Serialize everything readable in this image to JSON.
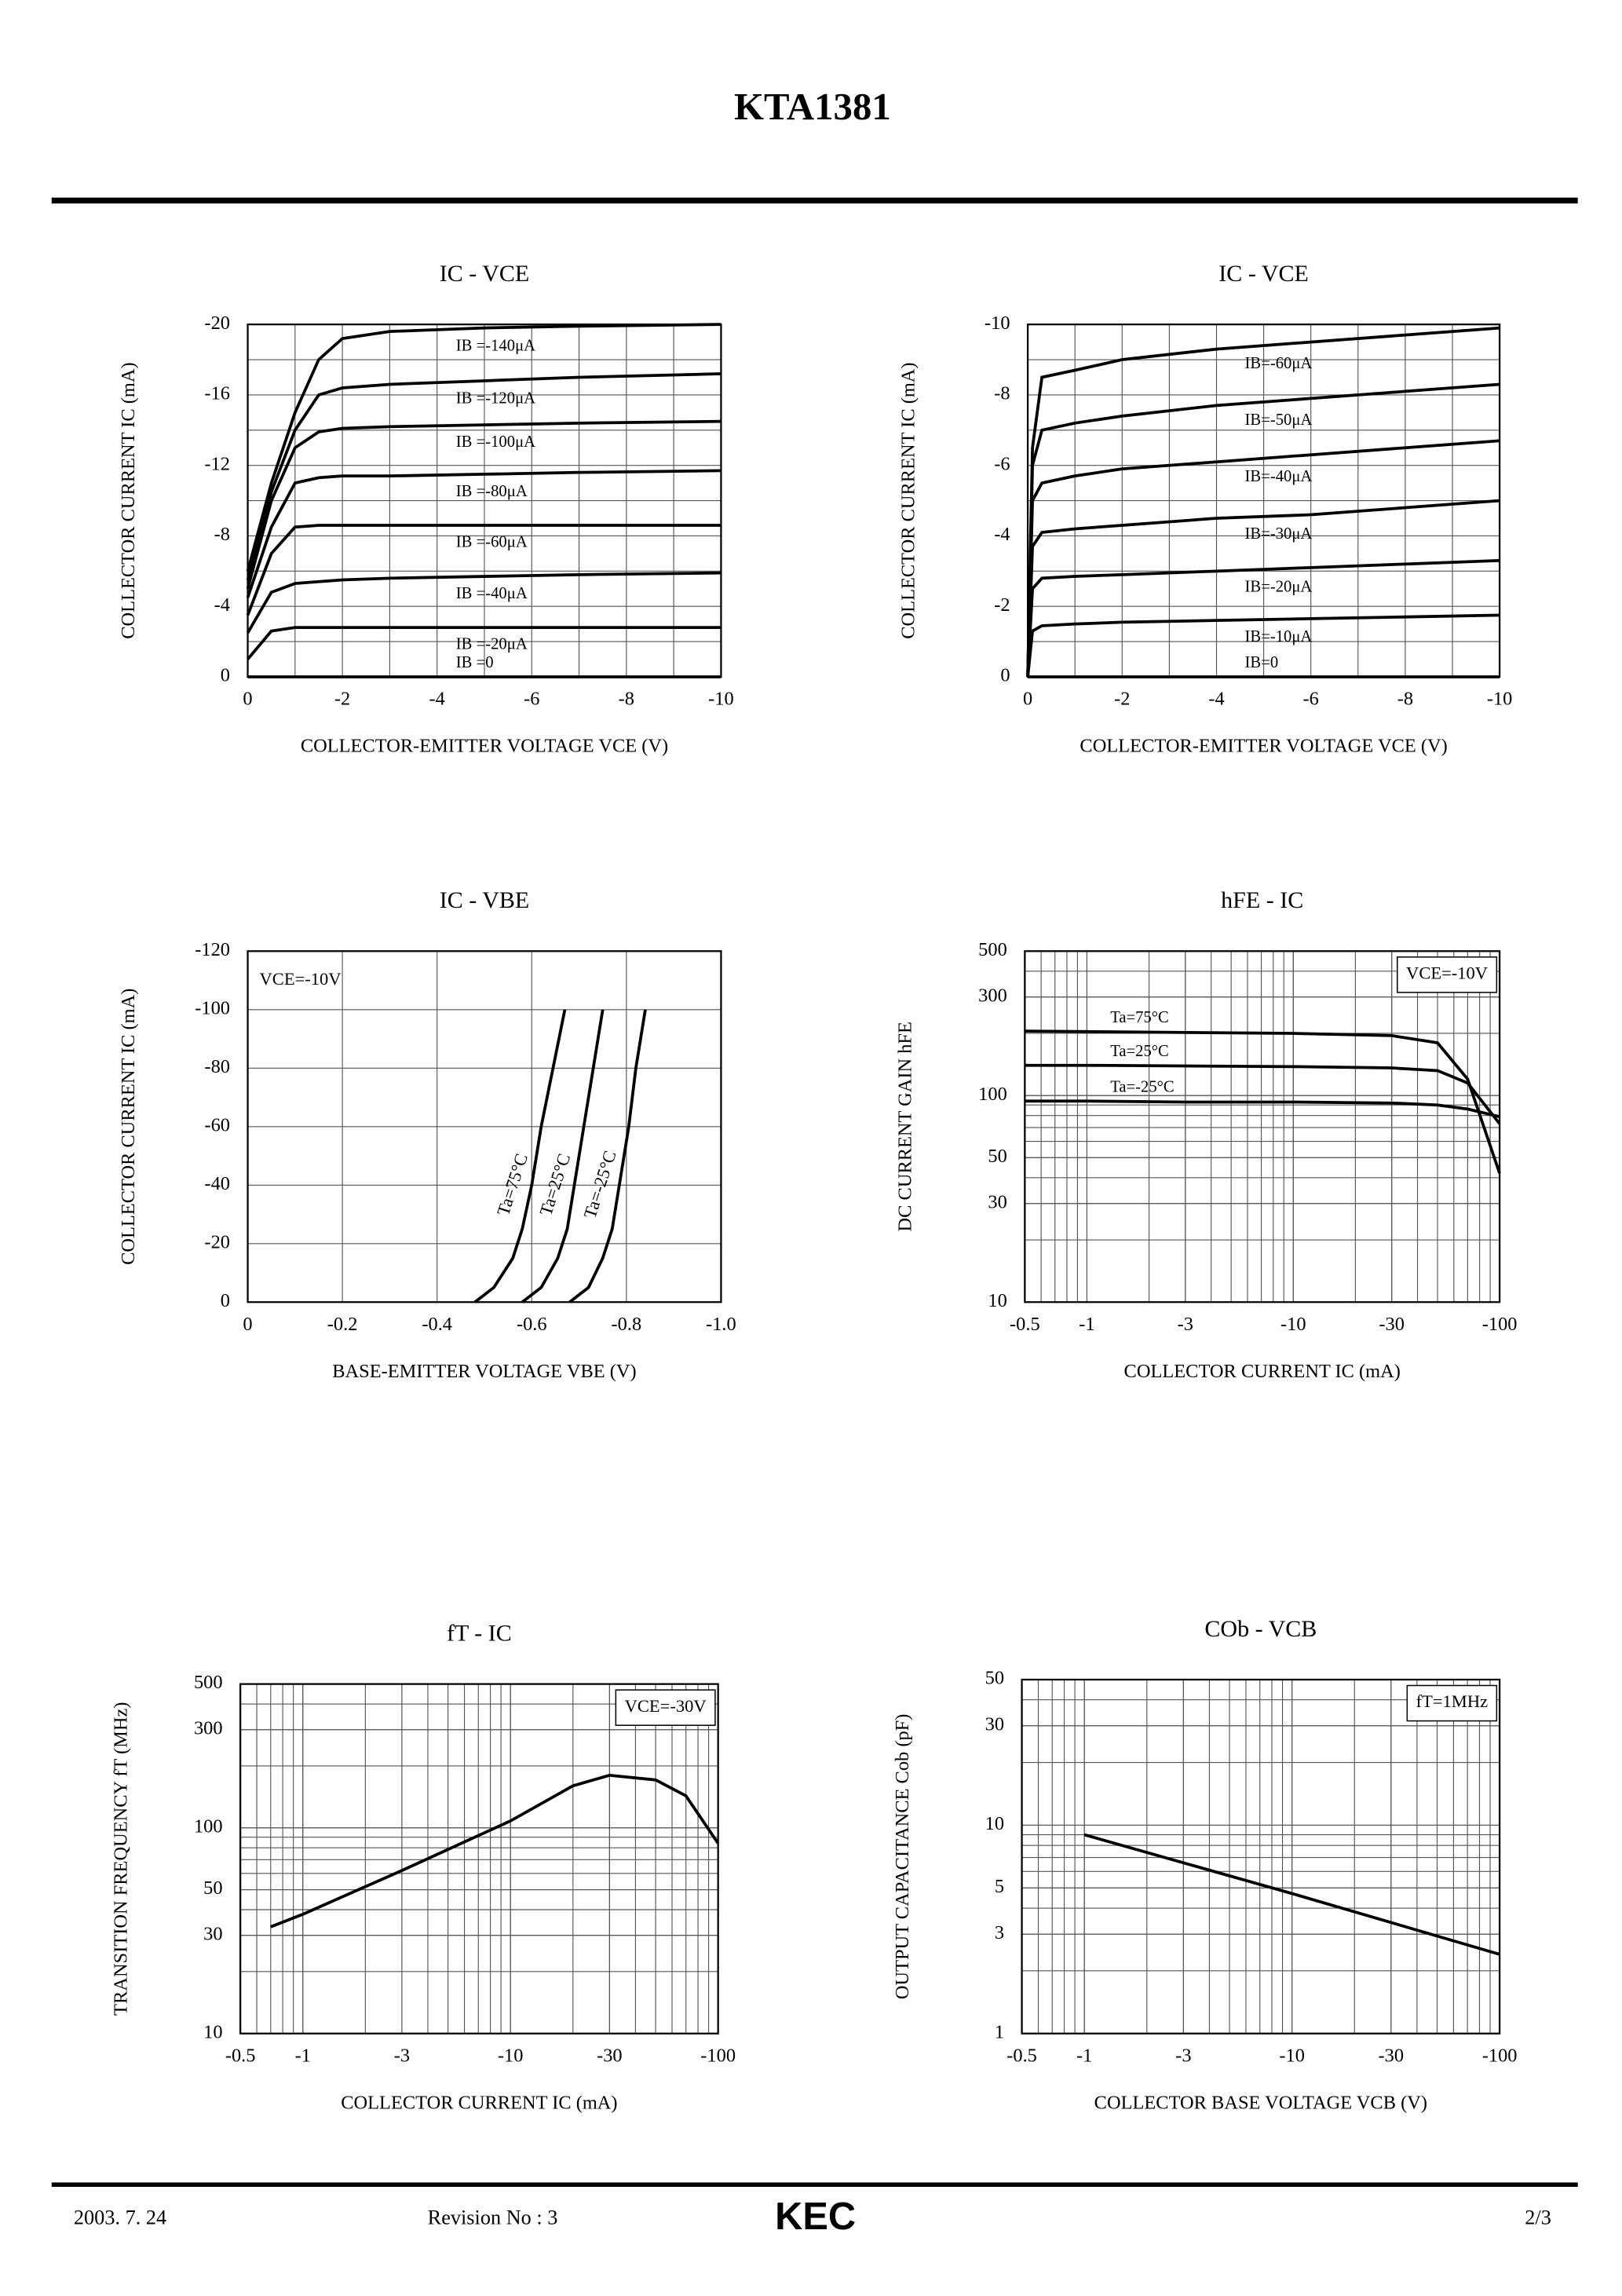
{
  "header": {
    "title": "KTA1381"
  },
  "footer": {
    "date": "2003. 7. 24",
    "revision": "Revision No : 3",
    "logo": "KEC",
    "page": "2/3"
  },
  "chart_data": [
    {
      "type": "line",
      "title": "IC - VCE",
      "x_label": "COLLECTOR-EMITTER VOLTAGE VCE (V)",
      "y_label": "COLLECTOR CURRENT IC (mA)",
      "xlim": [
        0,
        -10
      ],
      "ylim": [
        0,
        -20
      ],
      "xticks": [
        0,
        -2,
        -4,
        -6,
        -8,
        -10
      ],
      "yticks": [
        0,
        -4,
        -8,
        -12,
        -16,
        -20
      ],
      "grid": true,
      "x": [
        0,
        -0.5,
        -1,
        -1.5,
        -2,
        -3,
        -5,
        -7,
        -10
      ],
      "series": [
        {
          "name": "IB =-140μA",
          "color": "#000000",
          "values": [
            -6,
            -11,
            -15,
            -18,
            -19.2,
            -19.6,
            -19.8,
            -19.9,
            -20
          ]
        },
        {
          "name": "IB =-120μA",
          "color": "#000000",
          "values": [
            -5.5,
            -10.5,
            -14,
            -16,
            -16.4,
            -16.6,
            -16.8,
            -17,
            -17.2
          ]
        },
        {
          "name": "IB =-100μA",
          "color": "#000000",
          "values": [
            -5,
            -10,
            -13,
            -13.9,
            -14.1,
            -14.2,
            -14.3,
            -14.4,
            -14.5
          ]
        },
        {
          "name": "IB =-80μA",
          "color": "#000000",
          "values": [
            -4.5,
            -8.5,
            -11,
            -11.3,
            -11.4,
            -11.4,
            -11.5,
            -11.6,
            -11.7
          ]
        },
        {
          "name": "IB =-60μA",
          "color": "#000000",
          "values": [
            -3.5,
            -7,
            -8.5,
            -8.6,
            -8.6,
            -8.6,
            -8.6,
            -8.6,
            -8.6
          ]
        },
        {
          "name": "IB =-40μA",
          "color": "#000000",
          "values": [
            -2.5,
            -4.8,
            -5.3,
            -5.4,
            -5.5,
            -5.6,
            -5.7,
            -5.8,
            -5.9
          ]
        },
        {
          "name": "IB =-20μA",
          "color": "#000000",
          "values": [
            -1,
            -2.6,
            -2.8,
            -2.8,
            -2.8,
            -2.8,
            -2.8,
            -2.8,
            -2.8
          ]
        },
        {
          "name": "IB =0",
          "color": "#000000",
          "values": [
            0,
            0,
            0,
            0,
            0,
            0,
            0,
            0,
            0
          ]
        }
      ]
    },
    {
      "type": "line",
      "title": "IC - VCE",
      "x_label": "COLLECTOR-EMITTER VOLTAGE VCE (V)",
      "y_label": "COLLECTOR CURRENT IC (mA)",
      "xlim": [
        0,
        -10
      ],
      "ylim": [
        0,
        -10
      ],
      "xticks": [
        0,
        -2,
        -4,
        -6,
        -8,
        -10
      ],
      "yticks": [
        0,
        -2,
        -4,
        -6,
        -8,
        -10
      ],
      "grid": true,
      "x": [
        0,
        -0.1,
        -0.3,
        -1,
        -2,
        -4,
        -6,
        -8,
        -10
      ],
      "series": [
        {
          "name": "IB=-60μA",
          "color": "#000000",
          "values": [
            0,
            -6.5,
            -8.5,
            -8.7,
            -9.0,
            -9.3,
            -9.5,
            -9.7,
            -9.9
          ]
        },
        {
          "name": "IB=-50μA",
          "color": "#000000",
          "values": [
            0,
            -6.0,
            -7.0,
            -7.2,
            -7.4,
            -7.7,
            -7.9,
            -8.1,
            -8.3
          ]
        },
        {
          "name": "IB=-40μA",
          "color": "#000000",
          "values": [
            0,
            -5.0,
            -5.5,
            -5.7,
            -5.9,
            -6.1,
            -6.3,
            -6.5,
            -6.7
          ]
        },
        {
          "name": "IB=-30μA",
          "color": "#000000",
          "values": [
            0,
            -3.7,
            -4.1,
            -4.2,
            -4.3,
            -4.5,
            -4.6,
            -4.8,
            -5.0
          ]
        },
        {
          "name": "IB=-20μA",
          "color": "#000000",
          "values": [
            0,
            -2.5,
            -2.8,
            -2.85,
            -2.9,
            -3.0,
            -3.1,
            -3.2,
            -3.3
          ]
        },
        {
          "name": "IB=-10μA",
          "color": "#000000",
          "values": [
            0,
            -1.3,
            -1.45,
            -1.5,
            -1.55,
            -1.6,
            -1.65,
            -1.7,
            -1.75
          ]
        },
        {
          "name": "IB=0",
          "color": "#000000",
          "values": [
            0,
            0,
            0,
            0,
            0,
            0,
            0,
            0,
            0
          ]
        }
      ]
    },
    {
      "type": "line",
      "title": "IC - VBE",
      "x_label": "BASE-EMITTER VOLTAGE VBE (V)",
      "y_label": "COLLECTOR CURRENT IC (mA)",
      "annotation": "VCE=-10V",
      "xlim": [
        0,
        -1
      ],
      "ylim": [
        0,
        -120
      ],
      "xticks": [
        0,
        -0.2,
        -0.4,
        -0.6,
        -0.8,
        {
          "value": -1,
          "label": "-1.0"
        }
      ],
      "yticks": [
        0,
        -20,
        -40,
        -60,
        -80,
        -100,
        -120
      ],
      "grid": true,
      "series": [
        {
          "name": "Ta=75°C",
          "color": "#000000",
          "x": [
            -0.48,
            -0.52,
            -0.56,
            -0.58,
            -0.6,
            -0.62,
            -0.645,
            -0.67
          ],
          "values": [
            0,
            -5,
            -15,
            -25,
            -40,
            -60,
            -80,
            -100
          ]
        },
        {
          "name": "Ta=25°C",
          "color": "#000000",
          "x": [
            -0.58,
            -0.62,
            -0.655,
            -0.675,
            -0.69,
            -0.71,
            -0.73,
            -0.75
          ],
          "values": [
            0,
            -5,
            -15,
            -25,
            -40,
            -60,
            -80,
            -100
          ]
        },
        {
          "name": "Ta=-25°C",
          "color": "#000000",
          "x": [
            -0.68,
            -0.72,
            -0.75,
            -0.77,
            -0.785,
            -0.805,
            -0.82,
            -0.84
          ],
          "values": [
            0,
            -5,
            -15,
            -25,
            -40,
            -60,
            -80,
            -100
          ]
        }
      ]
    },
    {
      "type": "line",
      "title": "hFE - IC",
      "x_label": "COLLECTOR CURRENT IC (mA)",
      "y_label": "DC CURRENT GAIN hFE",
      "annotation": "VCE=-10V",
      "xscale": "log",
      "yscale": "log",
      "xlim": [
        -0.5,
        -100
      ],
      "ylim": [
        10,
        500
      ],
      "xticks": [
        -0.5,
        -1,
        -3,
        -10,
        -30,
        -100
      ],
      "yticks": [
        10,
        30,
        50,
        100,
        300,
        500
      ],
      "grid": true,
      "x": [
        -0.5,
        -1,
        -3,
        -10,
        -30,
        -50,
        -70,
        -100
      ],
      "series": [
        {
          "name": "Ta=75°C",
          "color": "#000000",
          "values": [
            205,
            204,
            202,
            200,
            195,
            180,
            120,
            42
          ]
        },
        {
          "name": "Ta=25°C",
          "color": "#000000",
          "values": [
            140,
            140,
            139,
            138,
            136,
            132,
            115,
            73
          ]
        },
        {
          "name": "Ta=-25°C",
          "color": "#000000",
          "values": [
            94,
            94,
            93,
            93,
            92,
            90,
            86,
            79
          ]
        }
      ]
    },
    {
      "type": "line",
      "title": "fT - IC",
      "x_label": "COLLECTOR CURRENT IC (mA)",
      "y_label": "TRANSITION FREQUENCY fT (MHz)",
      "annotation": "VCE=-30V",
      "xscale": "log",
      "yscale": "log",
      "xlim": [
        -0.5,
        -100
      ],
      "ylim": [
        10,
        500
      ],
      "xticks": [
        -0.5,
        -1,
        -3,
        -10,
        -30,
        -100
      ],
      "yticks": [
        10,
        30,
        50,
        100,
        300,
        500
      ],
      "grid": true,
      "x": [
        -0.7,
        -1,
        -3,
        -10,
        -20,
        -30,
        -50,
        -70,
        -100
      ],
      "series": [
        {
          "color": "#000000",
          "values": [
            33,
            38,
            62,
            108,
            160,
            180,
            171,
            143,
            84
          ]
        }
      ]
    },
    {
      "type": "line",
      "title": "COb - VCB",
      "x_label": "COLLECTOR BASE VOLTAGE VCB (V)",
      "y_label": "OUTPUT CAPACITANCE Cob (pF)",
      "annotation": "fT=1MHz",
      "xscale": "log",
      "yscale": "log",
      "xlim": [
        -0.5,
        -100
      ],
      "ylim": [
        1,
        50
      ],
      "xticks": [
        -0.5,
        -1,
        -3,
        -10,
        -30,
        -100
      ],
      "yticks": [
        1,
        3,
        5,
        10,
        30,
        50
      ],
      "grid": true,
      "x": [
        -1,
        -10,
        -100
      ],
      "series": [
        {
          "color": "#000000",
          "values": [
            9,
            4.7,
            2.4
          ]
        }
      ]
    }
  ]
}
